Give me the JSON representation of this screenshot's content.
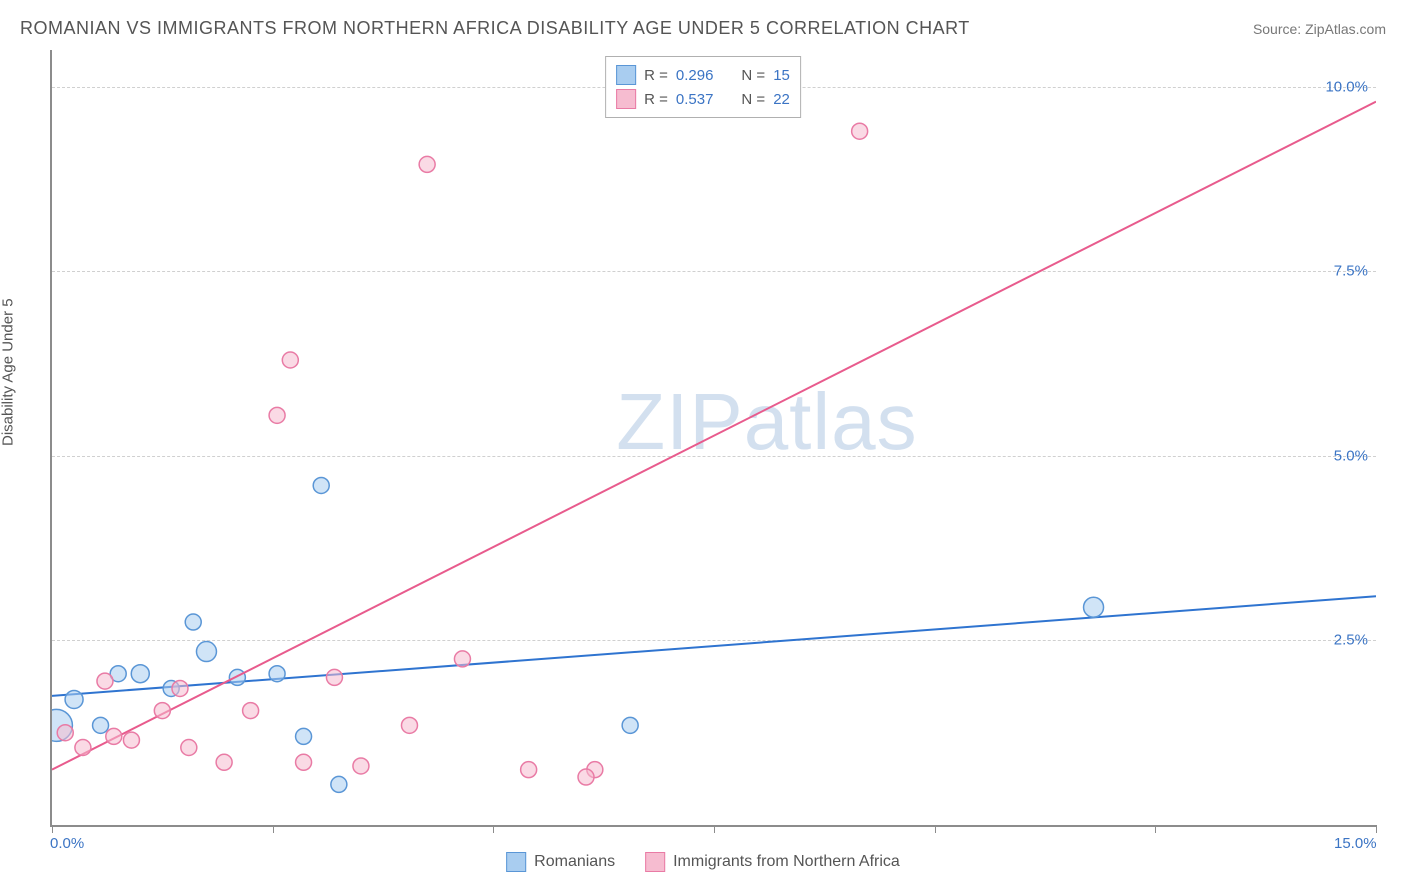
{
  "title": "ROMANIAN VS IMMIGRANTS FROM NORTHERN AFRICA DISABILITY AGE UNDER 5 CORRELATION CHART",
  "source": "Source: ZipAtlas.com",
  "y_axis_label": "Disability Age Under 5",
  "watermark": "ZIPatlas",
  "chart": {
    "type": "scatter",
    "xlim": [
      0,
      15
    ],
    "ylim": [
      0,
      10.5
    ],
    "x_ticks": [
      0,
      2.5,
      5,
      7.5,
      10,
      12.5,
      15
    ],
    "x_tick_labels_shown": {
      "0": "0.0%",
      "15": "15.0%"
    },
    "y_ticks": [
      2.5,
      5.0,
      7.5,
      10.0
    ],
    "y_tick_labels": {
      "2.5": "2.5%",
      "5.0": "5.0%",
      "7.5": "7.5%",
      "10.0": "10.0%"
    },
    "grid_color": "#d0d0d0",
    "axis_color": "#8c8c8c",
    "background_color": "#ffffff"
  },
  "series": [
    {
      "name": "Romanians",
      "label": "Romanians",
      "fill": "#a9cdf0",
      "stroke": "#5a96d6",
      "fill_opacity": 0.55,
      "marker_stroke_width": 1.5,
      "R": "0.296",
      "N": "15",
      "trend": {
        "x1": 0,
        "y1": 1.75,
        "x2": 15,
        "y2": 3.1,
        "color": "#2f74d0",
        "width": 2
      },
      "points": [
        {
          "x": 0.05,
          "y": 1.35,
          "r": 16
        },
        {
          "x": 0.25,
          "y": 1.7,
          "r": 9
        },
        {
          "x": 0.55,
          "y": 1.35,
          "r": 8
        },
        {
          "x": 0.75,
          "y": 2.05,
          "r": 8
        },
        {
          "x": 1.0,
          "y": 2.05,
          "r": 9
        },
        {
          "x": 1.35,
          "y": 1.85,
          "r": 8
        },
        {
          "x": 1.6,
          "y": 2.75,
          "r": 8
        },
        {
          "x": 1.75,
          "y": 2.35,
          "r": 10
        },
        {
          "x": 2.1,
          "y": 2.0,
          "r": 8
        },
        {
          "x": 2.55,
          "y": 2.05,
          "r": 8
        },
        {
          "x": 2.85,
          "y": 1.2,
          "r": 8
        },
        {
          "x": 3.25,
          "y": 0.55,
          "r": 8
        },
        {
          "x": 3.05,
          "y": 4.6,
          "r": 8
        },
        {
          "x": 6.55,
          "y": 1.35,
          "r": 8
        },
        {
          "x": 11.8,
          "y": 2.95,
          "r": 10
        }
      ]
    },
    {
      "name": "Immigrants from Northern Africa",
      "label": "Immigrants from Northern Africa",
      "fill": "#f6bcd0",
      "stroke": "#e97ba5",
      "fill_opacity": 0.55,
      "marker_stroke_width": 1.5,
      "R": "0.537",
      "N": "22",
      "trend": {
        "x1": 0,
        "y1": 0.75,
        "x2": 15,
        "y2": 9.8,
        "color": "#e85b8d",
        "width": 2
      },
      "points": [
        {
          "x": 0.15,
          "y": 1.25,
          "r": 8
        },
        {
          "x": 0.35,
          "y": 1.05,
          "r": 8
        },
        {
          "x": 0.6,
          "y": 1.95,
          "r": 8
        },
        {
          "x": 0.7,
          "y": 1.2,
          "r": 8
        },
        {
          "x": 0.9,
          "y": 1.15,
          "r": 8
        },
        {
          "x": 1.25,
          "y": 1.55,
          "r": 8
        },
        {
          "x": 1.45,
          "y": 1.85,
          "r": 8
        },
        {
          "x": 1.55,
          "y": 1.05,
          "r": 8
        },
        {
          "x": 1.95,
          "y": 0.85,
          "r": 8
        },
        {
          "x": 2.25,
          "y": 1.55,
          "r": 8
        },
        {
          "x": 2.55,
          "y": 5.55,
          "r": 8
        },
        {
          "x": 2.7,
          "y": 6.3,
          "r": 8
        },
        {
          "x": 2.85,
          "y": 0.85,
          "r": 8
        },
        {
          "x": 3.2,
          "y": 2.0,
          "r": 8
        },
        {
          "x": 3.5,
          "y": 0.8,
          "r": 8
        },
        {
          "x": 4.05,
          "y": 1.35,
          "r": 8
        },
        {
          "x": 4.25,
          "y": 8.95,
          "r": 8
        },
        {
          "x": 4.65,
          "y": 2.25,
          "r": 8
        },
        {
          "x": 5.4,
          "y": 0.75,
          "r": 8
        },
        {
          "x": 6.15,
          "y": 0.75,
          "r": 8
        },
        {
          "x": 6.05,
          "y": 0.65,
          "r": 8
        },
        {
          "x": 9.15,
          "y": 9.4,
          "r": 8
        }
      ]
    }
  ],
  "legend_top": {
    "rows": [
      {
        "swatch_fill": "#a9cdf0",
        "swatch_stroke": "#5a96d6",
        "R_label": "R =",
        "R": "0.296",
        "N_label": "N =",
        "N": "15"
      },
      {
        "swatch_fill": "#f6bcd0",
        "swatch_stroke": "#e97ba5",
        "R_label": "R =",
        "R": "0.537",
        "N_label": "N =",
        "N": "22"
      }
    ]
  },
  "legend_bottom": {
    "items": [
      {
        "swatch_fill": "#a9cdf0",
        "swatch_stroke": "#5a96d6",
        "label": "Romanians"
      },
      {
        "swatch_fill": "#f6bcd0",
        "swatch_stroke": "#e97ba5",
        "label": "Immigrants from Northern Africa"
      }
    ]
  }
}
